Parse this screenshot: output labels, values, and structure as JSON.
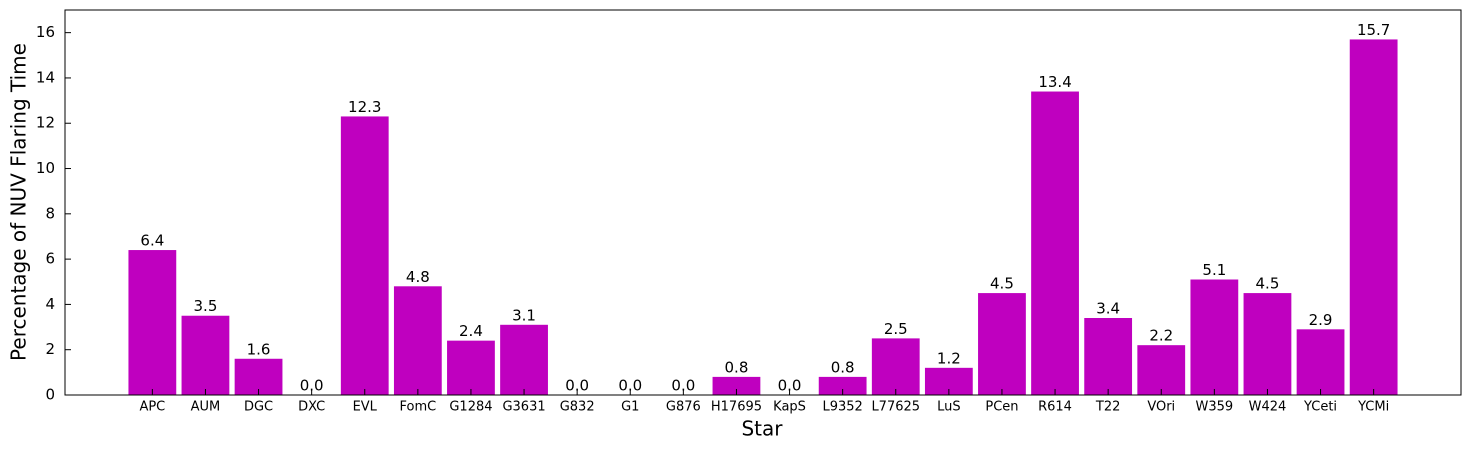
{
  "chart_data": {
    "type": "bar",
    "x_label": "Star",
    "y_label": "Percentage of NUV Flaring Time",
    "categories": [
      "APC",
      "AUM",
      "DGC",
      "DXC",
      "EVL",
      "FomC",
      "G1284",
      "G3631",
      "G832",
      "G1",
      "G876",
      "H17695",
      "KapS",
      "L9352",
      "L77625",
      "LuS",
      "PCen",
      "R614",
      "T22",
      "VOri",
      "W359",
      "W424",
      "YCeti",
      "YCMi"
    ],
    "values": [
      6.4,
      3.5,
      1.6,
      0.0,
      12.3,
      4.8,
      2.4,
      3.1,
      0.0,
      0.0,
      0.0,
      0.8,
      0.0,
      0.8,
      2.5,
      1.2,
      4.5,
      13.4,
      3.4,
      2.2,
      5.1,
      4.5,
      2.9,
      15.7
    ],
    "value_labels": [
      "6.4",
      "3.5",
      "1.6",
      "0.0",
      "12.3",
      "4.8",
      "2.4",
      "3.1",
      "0.0",
      "0.0",
      "0.0",
      "0.8",
      "0.0",
      "0.8",
      "2.5",
      "1.2",
      "4.5",
      "13.4",
      "3.4",
      "2.2",
      "5.1",
      "4.5",
      "2.9",
      "15.7"
    ],
    "color": "#bf00bf",
    "ylim": [
      0,
      17
    ],
    "yticks": [
      0,
      2,
      4,
      6,
      8,
      10,
      12,
      14,
      16
    ],
    "grid": false
  }
}
